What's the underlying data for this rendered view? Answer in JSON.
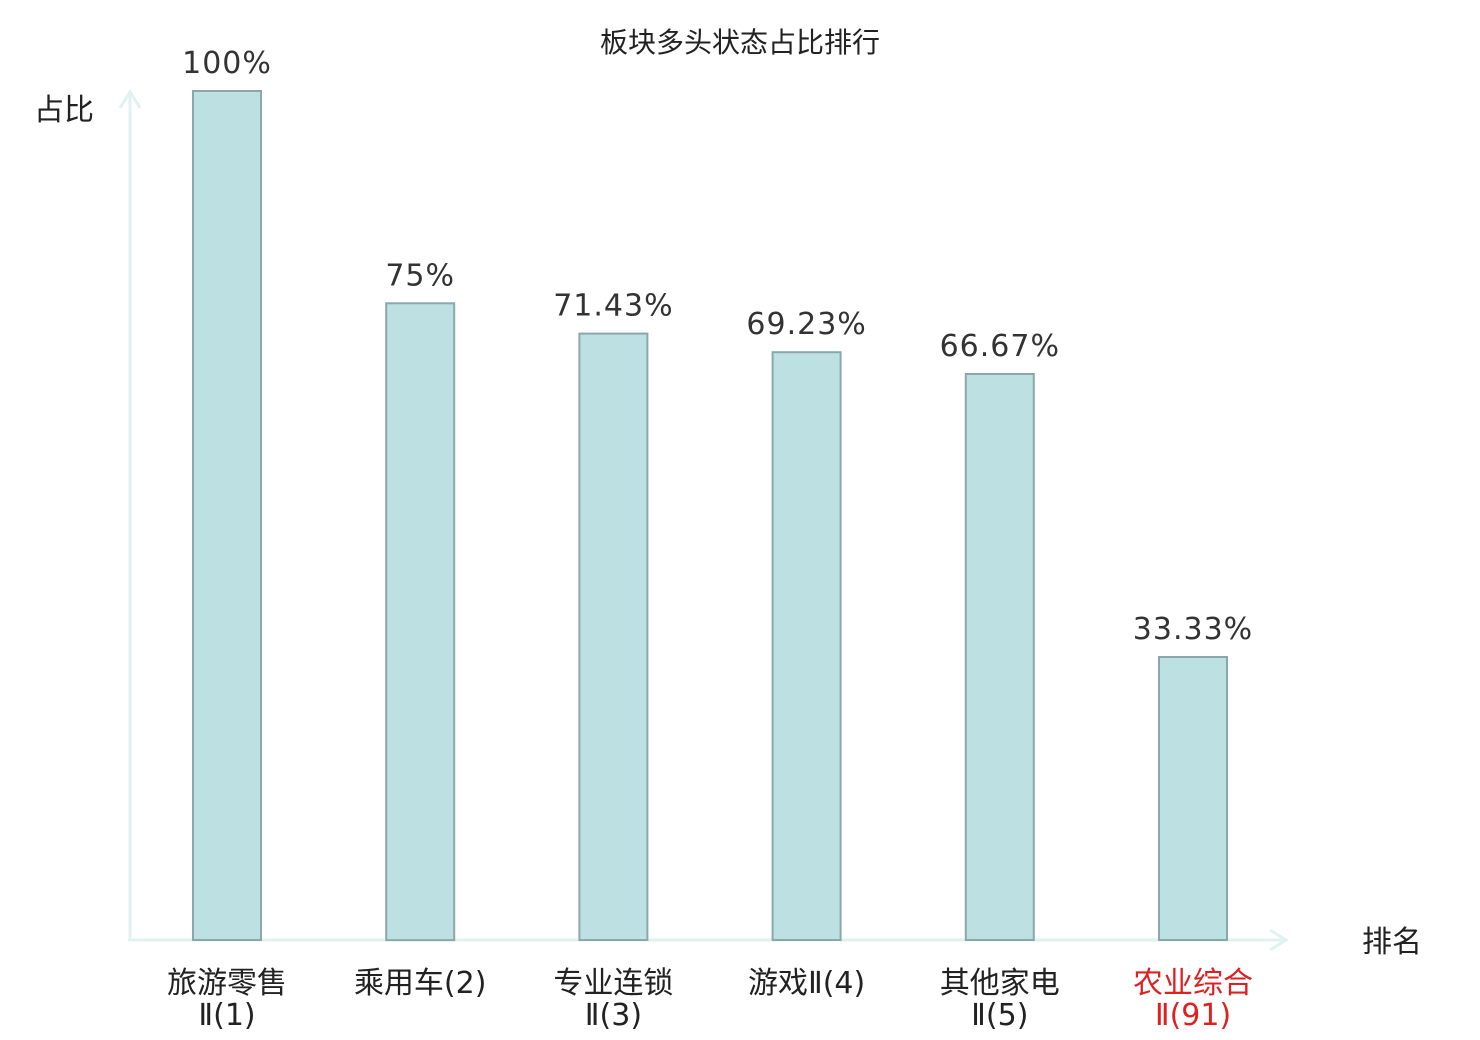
{
  "chart_data": {
    "type": "bar",
    "title": "板块多头状态占比排行",
    "ylabel": "占比",
    "xlabel": "排名",
    "ylim": [
      0,
      100
    ],
    "grid": false,
    "categories": [
      {
        "line1": "旅游零售",
        "line2": "Ⅱ(1)",
        "highlight": false
      },
      {
        "line1": "乘用车(2)",
        "line2": "",
        "highlight": false
      },
      {
        "line1": "专业连锁",
        "line2": "Ⅱ(3)",
        "highlight": false
      },
      {
        "line1": "游戏Ⅱ(4)",
        "line2": "",
        "highlight": false
      },
      {
        "line1": "其他家电",
        "line2": "Ⅱ(5)",
        "highlight": false
      },
      {
        "line1": "农业综合",
        "line2": "Ⅱ(91)",
        "highlight": true
      }
    ],
    "values": [
      100,
      75,
      71.43,
      69.23,
      66.67,
      33.33
    ],
    "value_labels": [
      "100%",
      "75%",
      "71.43%",
      "69.23%",
      "66.67%",
      "33.33%"
    ]
  },
  "colors": {
    "bar_fill": "#bde0e3",
    "bar_stroke": "#8aa8aa",
    "axis": "#dff2ef",
    "text": "#222222",
    "highlight": "#e02020"
  }
}
